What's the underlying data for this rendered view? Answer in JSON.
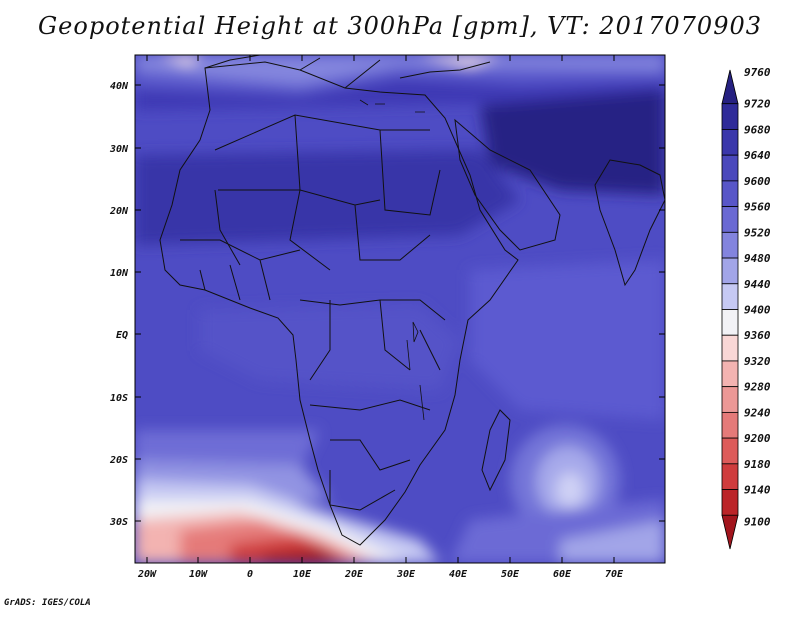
{
  "title": "Geopotential Height at 300hPa [gpm], VT: 2017070903",
  "credit": "GrADS: IGES/COLA",
  "map": {
    "lat_labels": [
      "40N",
      "30N",
      "20N",
      "10N",
      "EQ",
      "10S",
      "20S",
      "30S"
    ],
    "lon_labels": [
      "20W",
      "10W",
      "0",
      "10E",
      "20E",
      "30E",
      "40E",
      "50E",
      "60E",
      "70E"
    ]
  },
  "colorbar": {
    "levels": [
      9760,
      9720,
      9680,
      9640,
      9600,
      9560,
      9520,
      9480,
      9440,
      9400,
      9360,
      9320,
      9280,
      9240,
      9200,
      9180,
      9140,
      9100
    ],
    "colors": [
      "#262181",
      "#2f2b99",
      "#3a37ab",
      "#4a48bc",
      "#5856c8",
      "#6a69d3",
      "#8384de",
      "#a2a5e8",
      "#c6c9f3",
      "#f2f2f6",
      "#f9d7d6",
      "#f3b3b1",
      "#ec9896",
      "#e57a79",
      "#dd5b5a",
      "#cf3c3d",
      "#bb2428",
      "#a2151d"
    ]
  }
}
